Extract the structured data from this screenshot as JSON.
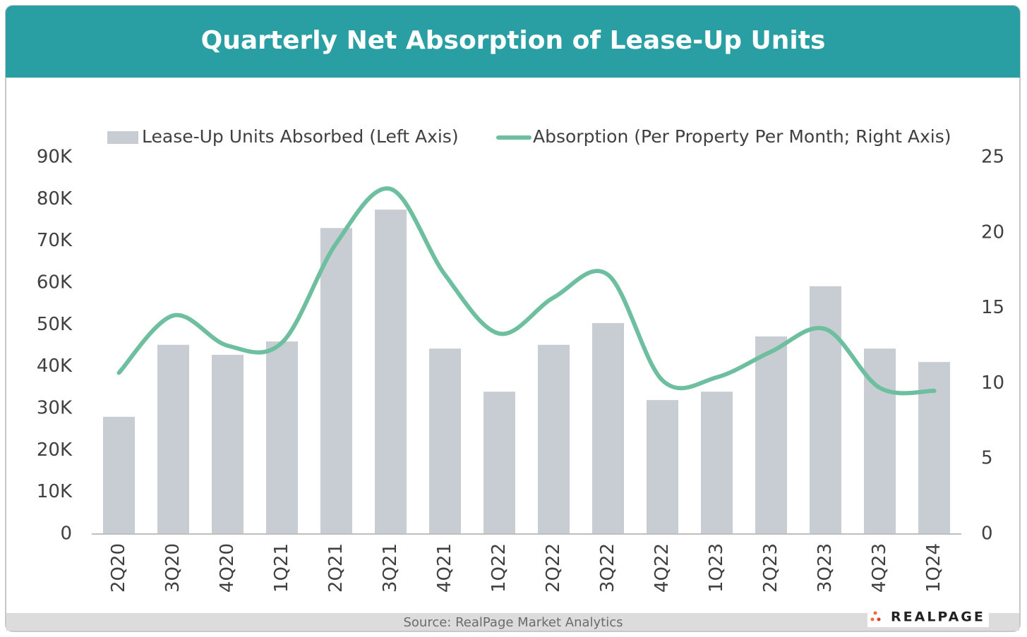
{
  "chart_data": {
    "type": "bar",
    "title": "Quarterly Net Absorption of Lease-Up Units",
    "categories": [
      "2Q20",
      "3Q20",
      "4Q20",
      "1Q21",
      "2Q21",
      "3Q21",
      "4Q21",
      "1Q22",
      "2Q22",
      "3Q22",
      "4Q22",
      "1Q23",
      "2Q23",
      "3Q23",
      "4Q23",
      "1Q24"
    ],
    "series": [
      {
        "name": "Lease-Up Units Absorbed (Left Axis)",
        "type": "bar",
        "color": "#c8ccd3",
        "values": [
          28000,
          45200,
          42800,
          46000,
          73100,
          77500,
          44300,
          34000,
          45200,
          50400,
          32000,
          34000,
          47200,
          59200,
          44300,
          41100
        ]
      },
      {
        "name": "Absorption (Per Property Per Month; Right Axis)",
        "type": "line",
        "axis": "y2",
        "color": "#6dbf9f",
        "smooth": true,
        "values": [
          10.7,
          14.5,
          12.5,
          12.7,
          19.3,
          22.9,
          17.2,
          13.3,
          15.7,
          17.2,
          10.2,
          10.4,
          12.1,
          13.6,
          9.7,
          9.5
        ]
      }
    ],
    "ylim": [
      0,
      90000
    ],
    "yticks": [
      0,
      {
        "value": 10000,
        "label": "10K"
      },
      {
        "value": 20000,
        "label": "20K"
      },
      {
        "value": 30000,
        "label": "30K"
      },
      {
        "value": 40000,
        "label": "40K"
      },
      {
        "value": 50000,
        "label": "50K"
      },
      {
        "value": 60000,
        "label": "60K"
      },
      {
        "value": 70000,
        "label": "70K"
      },
      {
        "value": 80000,
        "label": "80K"
      },
      {
        "value": 90000,
        "label": "90K"
      }
    ],
    "y2lim": [
      0,
      25
    ],
    "y2ticks": [
      0,
      5,
      10,
      15,
      20,
      25
    ],
    "grid": false,
    "legend": "top"
  },
  "source": "Source: RealPage Market Analytics",
  "logo": "REALPAGE"
}
